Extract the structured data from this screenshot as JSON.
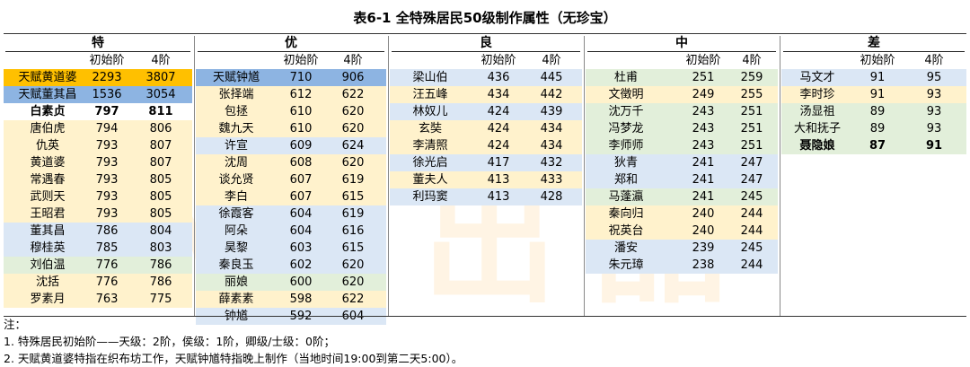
{
  "title": "表6-1 全特殊居民50级制作属性（无珍宝）",
  "watermark": "小小出品",
  "colors": {
    "yellow": "#fff2cc",
    "orange": "#ffc000",
    "blue": "#dbe7f5",
    "blue_strong": "#8db4e2",
    "green": "#e2efda",
    "white": "#ffffff"
  },
  "sub_headers": {
    "initial": "初始阶",
    "tier4": "4阶"
  },
  "groups": [
    {
      "name": "特",
      "rows": [
        {
          "name": "天赋黄道婆",
          "initial": "2293",
          "tier4": "3807",
          "bg": "orange"
        },
        {
          "name": "天赋董其昌",
          "initial": "1536",
          "tier4": "3054",
          "bg": "blue_strong"
        },
        {
          "name": "白素贞",
          "initial": "797",
          "tier4": "811",
          "bg": "white",
          "bold": true
        },
        {
          "name": "唐伯虎",
          "initial": "794",
          "tier4": "806",
          "bg": "yellow"
        },
        {
          "name": "仇英",
          "initial": "793",
          "tier4": "807",
          "bg": "yellow"
        },
        {
          "name": "黄道婆",
          "initial": "793",
          "tier4": "807",
          "bg": "yellow"
        },
        {
          "name": "常遇春",
          "initial": "793",
          "tier4": "805",
          "bg": "yellow"
        },
        {
          "name": "武则天",
          "initial": "793",
          "tier4": "805",
          "bg": "yellow"
        },
        {
          "name": "王昭君",
          "initial": "793",
          "tier4": "805",
          "bg": "yellow"
        },
        {
          "name": "董其昌",
          "initial": "786",
          "tier4": "804",
          "bg": "blue"
        },
        {
          "name": "穆桂英",
          "initial": "785",
          "tier4": "803",
          "bg": "blue"
        },
        {
          "name": "刘伯温",
          "initial": "776",
          "tier4": "786",
          "bg": "green"
        },
        {
          "name": "沈括",
          "initial": "776",
          "tier4": "786",
          "bg": "yellow"
        },
        {
          "name": "罗素月",
          "initial": "763",
          "tier4": "775",
          "bg": "yellow"
        }
      ]
    },
    {
      "name": "优",
      "rows": [
        {
          "name": "天赋钟馗",
          "initial": "710",
          "tier4": "906",
          "bg": "blue_strong"
        },
        {
          "name": "张择端",
          "initial": "612",
          "tier4": "622",
          "bg": "yellow"
        },
        {
          "name": "包拯",
          "initial": "610",
          "tier4": "620",
          "bg": "yellow"
        },
        {
          "name": "魏九天",
          "initial": "610",
          "tier4": "620",
          "bg": "yellow"
        },
        {
          "name": "许宣",
          "initial": "609",
          "tier4": "624",
          "bg": "blue"
        },
        {
          "name": "沈周",
          "initial": "608",
          "tier4": "620",
          "bg": "yellow"
        },
        {
          "name": "谈允贤",
          "initial": "607",
          "tier4": "619",
          "bg": "yellow"
        },
        {
          "name": "李白",
          "initial": "607",
          "tier4": "615",
          "bg": "yellow"
        },
        {
          "name": "徐霞客",
          "initial": "604",
          "tier4": "619",
          "bg": "blue"
        },
        {
          "name": "阿朵",
          "initial": "604",
          "tier4": "616",
          "bg": "blue"
        },
        {
          "name": "昊黎",
          "initial": "603",
          "tier4": "615",
          "bg": "blue"
        },
        {
          "name": "秦良玉",
          "initial": "602",
          "tier4": "620",
          "bg": "blue"
        },
        {
          "name": "丽娘",
          "initial": "600",
          "tier4": "620",
          "bg": "green"
        },
        {
          "name": "薛素素",
          "initial": "598",
          "tier4": "622",
          "bg": "yellow"
        },
        {
          "name": "钟馗",
          "initial": "592",
          "tier4": "604",
          "bg": "blue"
        }
      ]
    },
    {
      "name": "良",
      "rows": [
        {
          "name": "梁山伯",
          "initial": "436",
          "tier4": "445",
          "bg": "blue"
        },
        {
          "name": "汪五峰",
          "initial": "434",
          "tier4": "442",
          "bg": "yellow"
        },
        {
          "name": "林奴儿",
          "initial": "424",
          "tier4": "439",
          "bg": "blue"
        },
        {
          "name": "玄奘",
          "initial": "424",
          "tier4": "434",
          "bg": "yellow"
        },
        {
          "name": "李清照",
          "initial": "424",
          "tier4": "434",
          "bg": "yellow"
        },
        {
          "name": "徐光启",
          "initial": "417",
          "tier4": "432",
          "bg": "blue"
        },
        {
          "name": "董夫人",
          "initial": "413",
          "tier4": "433",
          "bg": "yellow"
        },
        {
          "name": "利玛窦",
          "initial": "413",
          "tier4": "428",
          "bg": "blue"
        }
      ]
    },
    {
      "name": "中",
      "rows": [
        {
          "name": "杜甫",
          "initial": "251",
          "tier4": "259",
          "bg": "green"
        },
        {
          "name": "文徵明",
          "initial": "249",
          "tier4": "255",
          "bg": "yellow"
        },
        {
          "name": "沈万千",
          "initial": "243",
          "tier4": "251",
          "bg": "green"
        },
        {
          "name": "冯梦龙",
          "initial": "243",
          "tier4": "251",
          "bg": "green"
        },
        {
          "name": "李师师",
          "initial": "243",
          "tier4": "251",
          "bg": "green"
        },
        {
          "name": "狄青",
          "initial": "241",
          "tier4": "247",
          "bg": "blue"
        },
        {
          "name": "郑和",
          "initial": "241",
          "tier4": "247",
          "bg": "blue"
        },
        {
          "name": "马蓬瀛",
          "initial": "241",
          "tier4": "245",
          "bg": "green"
        },
        {
          "name": "秦向归",
          "initial": "240",
          "tier4": "244",
          "bg": "yellow"
        },
        {
          "name": "祝英台",
          "initial": "240",
          "tier4": "244",
          "bg": "yellow"
        },
        {
          "name": "潘安",
          "initial": "239",
          "tier4": "245",
          "bg": "blue"
        },
        {
          "name": "朱元璋",
          "initial": "238",
          "tier4": "244",
          "bg": "blue"
        }
      ]
    },
    {
      "name": "差",
      "rows": [
        {
          "name": "马文才",
          "initial": "91",
          "tier4": "95",
          "bg": "blue"
        },
        {
          "name": "李时珍",
          "initial": "91",
          "tier4": "93",
          "bg": "yellow"
        },
        {
          "name": "汤显祖",
          "initial": "89",
          "tier4": "93",
          "bg": "green"
        },
        {
          "name": "大和抚子",
          "initial": "89",
          "tier4": "93",
          "bg": "green"
        },
        {
          "name": "聂隐娘",
          "initial": "87",
          "tier4": "91",
          "bg": "green",
          "bold": true
        }
      ]
    }
  ],
  "notes": {
    "label": "注：",
    "line1": "1. 特殊居民初始阶——天级：2阶，侯级：1阶，卿级/士级：0阶；",
    "line2": "2. 天赋黄道婆特指在织布坊工作，天赋钟馗特指晚上制作（当地时间19:00到第二天5:00）。"
  }
}
